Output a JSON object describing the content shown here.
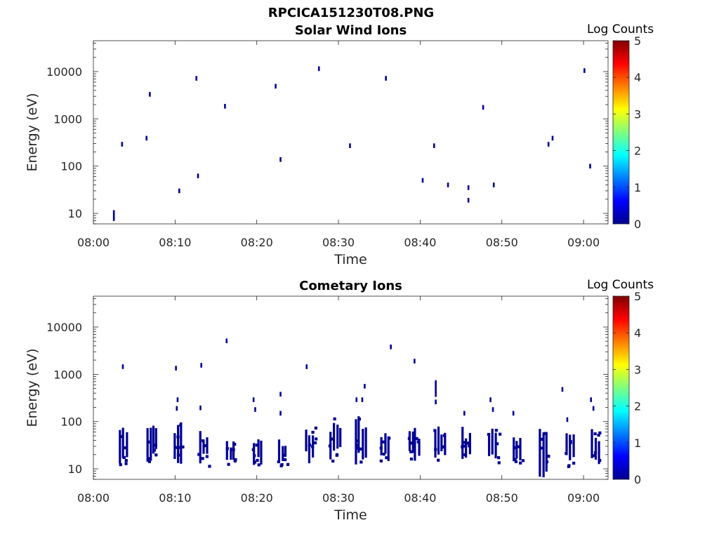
{
  "figure_title": "RPCICA151230T08.PNG",
  "chart_data": [
    {
      "type": "heatmap",
      "title": "Solar Wind Ions",
      "xlabel": "Time",
      "ylabel": "Energy (eV)",
      "x_ticks": [
        "08:00",
        "08:10",
        "08:20",
        "08:30",
        "08:40",
        "08:50",
        "09:00"
      ],
      "x_range_min": [
        0,
        63
      ],
      "y_scale": "log",
      "y_ticks": [
        10,
        100,
        1000,
        10000
      ],
      "y_tick_labels": [
        "10",
        "100",
        "1000",
        "10000"
      ],
      "y_range": [
        6,
        45000
      ],
      "colorbar": {
        "label": "Log Counts",
        "range": [
          0,
          5
        ],
        "ticks": [
          "0",
          "1",
          "2",
          "3",
          "4",
          "5"
        ],
        "colormap": "jet"
      },
      "points": [
        {
          "t": 2.5,
          "e": 9,
          "v": 0.1,
          "span": 1.3
        },
        {
          "t": 3.5,
          "e": 290,
          "v": 0.1
        },
        {
          "t": 6.5,
          "e": 390,
          "v": 0.1
        },
        {
          "t": 6.9,
          "e": 3300,
          "v": 0.1
        },
        {
          "t": 10.5,
          "e": 30,
          "v": 0.1
        },
        {
          "t": 12.6,
          "e": 7200,
          "v": 0.1
        },
        {
          "t": 12.8,
          "e": 62,
          "v": 0.1
        },
        {
          "t": 16.1,
          "e": 1850,
          "v": 0.1
        },
        {
          "t": 22.3,
          "e": 4900,
          "v": 0.1
        },
        {
          "t": 22.9,
          "e": 138,
          "v": 0.1
        },
        {
          "t": 27.6,
          "e": 11500,
          "v": 0.1
        },
        {
          "t": 31.4,
          "e": 270,
          "v": 0.1
        },
        {
          "t": 35.8,
          "e": 7200,
          "v": 0.1
        },
        {
          "t": 40.3,
          "e": 50,
          "v": 0.1
        },
        {
          "t": 41.7,
          "e": 270,
          "v": 0.1
        },
        {
          "t": 43.4,
          "e": 40,
          "v": 0.1
        },
        {
          "t": 45.9,
          "e": 35,
          "v": 0.1
        },
        {
          "t": 45.9,
          "e": 19,
          "v": 0.1
        },
        {
          "t": 47.7,
          "e": 1750,
          "v": 0.1
        },
        {
          "t": 49.0,
          "e": 40,
          "v": 0.1
        },
        {
          "t": 55.7,
          "e": 290,
          "v": 0.1
        },
        {
          "t": 56.2,
          "e": 390,
          "v": 0.1
        },
        {
          "t": 60.1,
          "e": 10500,
          "v": 0.1
        },
        {
          "t": 60.8,
          "e": 100,
          "v": 0.1
        }
      ]
    },
    {
      "type": "heatmap",
      "title": "Cometary Ions",
      "xlabel": "Time",
      "ylabel": "Energy (eV)",
      "x_ticks": [
        "08:00",
        "08:10",
        "08:20",
        "08:30",
        "08:40",
        "08:50",
        "09:00"
      ],
      "x_range_min": [
        0,
        63
      ],
      "y_scale": "log",
      "y_ticks": [
        10,
        100,
        1000,
        10000
      ],
      "y_tick_labels": [
        "10",
        "100",
        "1000",
        "10000"
      ],
      "y_range": [
        6,
        45000
      ],
      "colorbar": {
        "label": "Log Counts",
        "range": [
          0,
          5
        ],
        "ticks": [
          "0",
          "1",
          "2",
          "3",
          "4",
          "5"
        ],
        "colormap": "jet"
      },
      "clusters": [
        {
          "t": 3.5,
          "lo": 12,
          "hi": 78
        },
        {
          "t": 6.8,
          "lo": 13,
          "hi": 100
        },
        {
          "t": 10.2,
          "lo": 12,
          "hi": 100
        },
        {
          "t": 13.3,
          "lo": 12,
          "hi": 75
        },
        {
          "t": 16.6,
          "lo": 13,
          "hi": 40
        },
        {
          "t": 20.0,
          "lo": 12,
          "hi": 45
        },
        {
          "t": 23.0,
          "lo": 12,
          "hi": 42
        },
        {
          "t": 26.3,
          "lo": 12,
          "hi": 100
        },
        {
          "t": 29.3,
          "lo": 15,
          "hi": 125
        },
        {
          "t": 32.4,
          "lo": 12,
          "hi": 160
        },
        {
          "t": 35.6,
          "lo": 13,
          "hi": 60
        },
        {
          "t": 38.9,
          "lo": 13,
          "hi": 80
        },
        {
          "t": 42.1,
          "lo": 14,
          "hi": 85
        },
        {
          "t": 45.5,
          "lo": 14,
          "hi": 80
        },
        {
          "t": 48.8,
          "lo": 14,
          "hi": 75
        },
        {
          "t": 51.7,
          "lo": 14,
          "hi": 65
        },
        {
          "t": 55.0,
          "lo": 6,
          "hi": 80
        },
        {
          "t": 58.2,
          "lo": 12,
          "hi": 60
        },
        {
          "t": 61.3,
          "lo": 12,
          "hi": 70
        }
      ],
      "points": [
        {
          "t": 3.6,
          "e": 1450,
          "v": 0.1
        },
        {
          "t": 10.1,
          "e": 1350,
          "v": 0.1
        },
        {
          "t": 13.2,
          "e": 1550,
          "v": 0.1
        },
        {
          "t": 16.3,
          "e": 5100,
          "v": 0.1
        },
        {
          "t": 26.1,
          "e": 1450,
          "v": 0.1
        },
        {
          "t": 36.4,
          "e": 3800,
          "v": 0.1
        },
        {
          "t": 39.3,
          "e": 1900,
          "v": 0.1
        },
        {
          "t": 10.2,
          "e": 190,
          "v": 0.1
        },
        {
          "t": 10.3,
          "e": 290,
          "v": 0.1
        },
        {
          "t": 13.1,
          "e": 195,
          "v": 0.1
        },
        {
          "t": 19.6,
          "e": 290,
          "v": 0.1
        },
        {
          "t": 19.8,
          "e": 180,
          "v": 0.1
        },
        {
          "t": 22.9,
          "e": 380,
          "v": 0.1
        },
        {
          "t": 22.9,
          "e": 150,
          "v": 0.1
        },
        {
          "t": 32.2,
          "e": 290,
          "v": 0.1
        },
        {
          "t": 32.9,
          "e": 290,
          "v": 0.1
        },
        {
          "t": 33.2,
          "e": 560,
          "v": 0.1
        },
        {
          "t": 41.9,
          "e": 500,
          "v": 0.1,
          "span": 1.5
        },
        {
          "t": 41.9,
          "e": 260,
          "v": 0.1
        },
        {
          "t": 45.4,
          "e": 150,
          "v": 0.1
        },
        {
          "t": 48.6,
          "e": 290,
          "v": 0.1
        },
        {
          "t": 48.9,
          "e": 180,
          "v": 0.1
        },
        {
          "t": 51.4,
          "e": 150,
          "v": 0.1
        },
        {
          "t": 57.4,
          "e": 480,
          "v": 0.1
        },
        {
          "t": 60.9,
          "e": 290,
          "v": 0.1
        },
        {
          "t": 61.2,
          "e": 190,
          "v": 0.1
        },
        {
          "t": 58.0,
          "e": 110,
          "v": 0.1
        }
      ]
    }
  ]
}
